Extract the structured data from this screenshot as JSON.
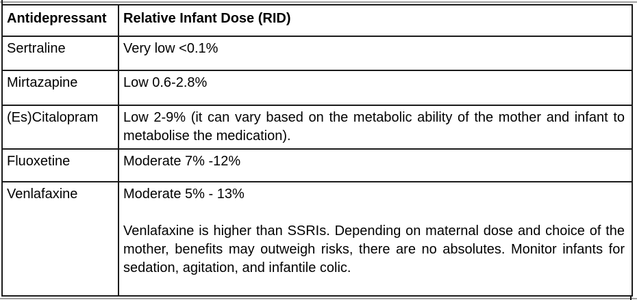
{
  "page": {
    "background_color": "#ffffff",
    "text_color": "#000000",
    "border_color": "#1a1a1a",
    "hairline_color": "#9e9e9e"
  },
  "table": {
    "columns": [
      {
        "label": "Antidepressant"
      },
      {
        "label": "Relative Infant Dose (RID)"
      }
    ],
    "rows": [
      {
        "drug": "Sertraline",
        "paragraphs": [
          "Very low <0.1%"
        ]
      },
      {
        "drug": "Mirtazapine",
        "paragraphs": [
          "Low 0.6-2.8%"
        ]
      },
      {
        "drug": "(Es)Citalopram",
        "paragraphs": [
          "Low 2-9% (it can vary based on the metabolic ability of the mother and infant to metabolise the medication)."
        ]
      },
      {
        "drug": "Fluoxetine",
        "paragraphs": [
          "Moderate 7% -12%"
        ]
      },
      {
        "drug": "Venlafaxine",
        "paragraphs": [
          "Moderate 5% - 13%",
          "Venlafaxine is higher than SSRIs. Depending on maternal dose and choice of the mother, benefits may outweigh risks, there are no absolutes. Monitor infants for sedation, agitation, and infantile colic."
        ]
      }
    ]
  }
}
